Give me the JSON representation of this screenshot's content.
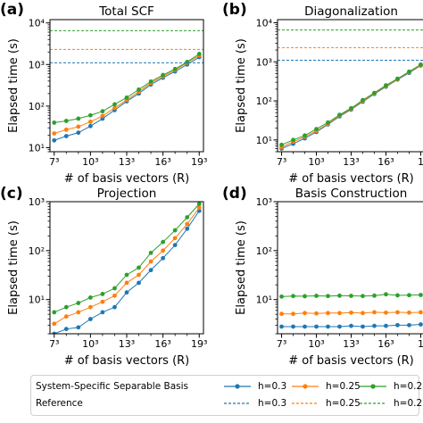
{
  "chart_data": [
    {
      "type": "line",
      "panel": "(a)",
      "title": "Total SCF",
      "xlabel": "# of basis vectors (R)",
      "ylabel": "Elapsed time (s)",
      "x_ticks": [
        "7³",
        "10³",
        "13³",
        "16³",
        "19³"
      ],
      "yscale": "log",
      "ylim": [
        8,
        12000
      ],
      "y_ticks": [
        "10¹",
        "10²",
        "10³",
        "10⁴"
      ],
      "x": [
        7,
        8,
        9,
        10,
        11,
        12,
        13,
        14,
        15,
        16,
        17,
        18,
        19
      ],
      "series": [
        {
          "name": "h=0.3",
          "style": "marker",
          "color": "#1f77b4",
          "values": [
            15,
            19,
            23,
            33,
            50,
            80,
            130,
            200,
            330,
            480,
            680,
            1000,
            1500
          ]
        },
        {
          "name": "h=0.25",
          "style": "marker",
          "color": "#ff7f0e",
          "values": [
            22,
            27,
            32,
            42,
            58,
            90,
            140,
            220,
            360,
            520,
            740,
            1100,
            1650
          ]
        },
        {
          "name": "h=0.2",
          "style": "marker",
          "color": "#2ca02c",
          "values": [
            40,
            44,
            50,
            60,
            75,
            110,
            160,
            250,
            390,
            560,
            780,
            1150,
            1800
          ]
        },
        {
          "name": "h=0.3",
          "style": "dashed",
          "color": "#1f77b4",
          "values": [
            1100,
            1100,
            1100,
            1100,
            1100,
            1100,
            1100,
            1100,
            1100,
            1100,
            1100,
            1100,
            1100
          ]
        },
        {
          "name": "h=0.25",
          "style": "dashed",
          "color": "#ff7f0e",
          "values": [
            2300,
            2300,
            2300,
            2300,
            2300,
            2300,
            2300,
            2300,
            2300,
            2300,
            2300,
            2300,
            2300
          ]
        },
        {
          "name": "h=0.2",
          "style": "dashed",
          "color": "#2ca02c",
          "values": [
            6500,
            6500,
            6500,
            6500,
            6500,
            6500,
            6500,
            6500,
            6500,
            6500,
            6500,
            6500,
            6500
          ]
        }
      ]
    },
    {
      "type": "line",
      "panel": "(b)",
      "title": "Diagonalization",
      "xlabel": "# of basis vectors (R)",
      "ylabel": "Elapsed time (s)",
      "x_ticks": [
        "7³",
        "10³",
        "13³",
        "16³",
        "1"
      ],
      "yscale": "log",
      "ylim": [
        5,
        12000
      ],
      "y_ticks": [
        "10¹",
        "10²",
        "10³",
        "10⁴"
      ],
      "x": [
        7,
        8,
        9,
        10,
        11,
        12,
        13,
        14,
        15,
        16,
        17,
        18,
        19
      ],
      "series": [
        {
          "name": "h=0.3",
          "style": "marker",
          "color": "#1f77b4",
          "values": [
            6,
            8,
            11,
            16,
            25,
            40,
            60,
            95,
            150,
            230,
            350,
            520,
            800
          ]
        },
        {
          "name": "h=0.25",
          "style": "marker",
          "color": "#ff7f0e",
          "values": [
            6.5,
            9,
            12,
            17,
            26,
            42,
            63,
            100,
            155,
            240,
            360,
            540,
            820
          ]
        },
        {
          "name": "h=0.2",
          "style": "marker",
          "color": "#2ca02c",
          "values": [
            7.5,
            10,
            13,
            19,
            28,
            44,
            65,
            105,
            160,
            250,
            370,
            560,
            850
          ]
        },
        {
          "name": "h=0.3",
          "style": "dashed",
          "color": "#1f77b4",
          "values": [
            1100,
            1100,
            1100,
            1100,
            1100,
            1100,
            1100,
            1100,
            1100,
            1100,
            1100,
            1100,
            1100
          ]
        },
        {
          "name": "h=0.25",
          "style": "dashed",
          "color": "#ff7f0e",
          "values": [
            2300,
            2300,
            2300,
            2300,
            2300,
            2300,
            2300,
            2300,
            2300,
            2300,
            2300,
            2300,
            2300
          ]
        },
        {
          "name": "h=0.2",
          "style": "dashed",
          "color": "#2ca02c",
          "values": [
            6500,
            6500,
            6500,
            6500,
            6500,
            6500,
            6500,
            6500,
            6500,
            6500,
            6500,
            6500,
            6500
          ]
        }
      ]
    },
    {
      "type": "line",
      "panel": "(c)",
      "title": "Projection",
      "xlabel": "# of basis vectors (R)",
      "ylabel": "Elapsed time (s)",
      "x_ticks": [
        "7³",
        "10³",
        "13³",
        "16³",
        "19³"
      ],
      "yscale": "log",
      "ylim": [
        2,
        1000
      ],
      "y_ticks": [
        "10¹",
        "10²",
        "10³"
      ],
      "x": [
        7,
        8,
        9,
        10,
        11,
        12,
        13,
        14,
        15,
        16,
        17,
        18,
        19
      ],
      "series": [
        {
          "name": "h=0.3",
          "style": "marker",
          "color": "#1f77b4",
          "values": [
            2,
            2.5,
            2.7,
            4,
            5.5,
            7,
            14,
            22,
            40,
            70,
            130,
            280,
            650
          ]
        },
        {
          "name": "h=0.25",
          "style": "marker",
          "color": "#ff7f0e",
          "values": [
            3.2,
            4.5,
            5.5,
            7,
            9,
            12,
            22,
            32,
            60,
            100,
            180,
            350,
            750
          ]
        },
        {
          "name": "h=0.2",
          "style": "marker",
          "color": "#2ca02c",
          "values": [
            5.5,
            7,
            8.5,
            11,
            13,
            17,
            32,
            45,
            90,
            150,
            260,
            480,
            900
          ]
        }
      ]
    },
    {
      "type": "line",
      "panel": "(d)",
      "title": "Basis Construction",
      "xlabel": "# of basis vectors (R)",
      "ylabel": "Elapsed time (s)",
      "x_ticks": [
        "7³",
        "10³",
        "13³",
        "16³",
        "1"
      ],
      "yscale": "log",
      "ylim": [
        2,
        1000
      ],
      "y_ticks": [
        "10¹",
        "10²",
        "10³"
      ],
      "x": [
        7,
        8,
        9,
        10,
        11,
        12,
        13,
        14,
        15,
        16,
        17,
        18,
        19
      ],
      "series": [
        {
          "name": "h=0.3",
          "style": "marker",
          "color": "#1f77b4",
          "values": [
            2.8,
            2.8,
            2.8,
            2.8,
            2.8,
            2.8,
            2.9,
            2.8,
            2.9,
            2.9,
            3.0,
            3.0,
            3.1
          ]
        },
        {
          "name": "h=0.25",
          "style": "marker",
          "color": "#ff7f0e",
          "values": [
            5.1,
            5.1,
            5.3,
            5.2,
            5.3,
            5.3,
            5.4,
            5.3,
            5.5,
            5.4,
            5.5,
            5.4,
            5.5
          ]
        },
        {
          "name": "h=0.2",
          "style": "marker",
          "color": "#2ca02c",
          "values": [
            11.5,
            11.8,
            11.7,
            11.9,
            11.8,
            12.0,
            11.9,
            11.8,
            12.0,
            12.8,
            12.2,
            12.3,
            12.4
          ]
        }
      ]
    }
  ],
  "legend": {
    "row1_label": "System-Specific Separable Basis",
    "row2_label": "Reference",
    "entries": [
      {
        "name": "h=0.3",
        "color": "#1f77b4"
      },
      {
        "name": "h=0.25",
        "color": "#ff7f0e"
      },
      {
        "name": "h=0.2",
        "color": "#2ca02c"
      }
    ]
  }
}
